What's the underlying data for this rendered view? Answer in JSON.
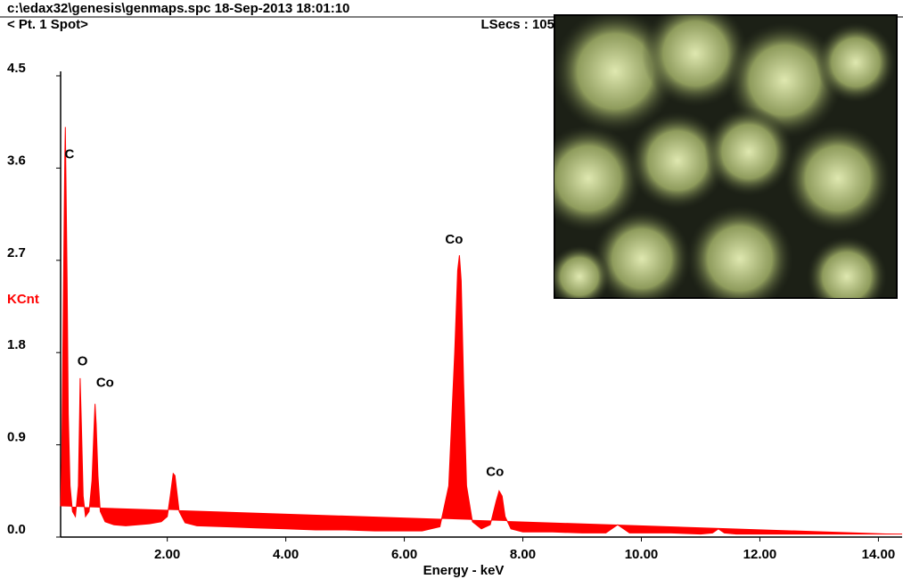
{
  "chart_data": {
    "type": "area",
    "header": "c:\\edax32\\genesis\\genmaps.spc  18-Sep-2013 18:01:10",
    "subheader": "< Pt.  1 Spot>",
    "live_time": "LSecs : 105",
    "ylabel": "KCnt",
    "xlabel": "Energy - keV",
    "color": "#ff0000",
    "xlim": [
      0.2,
      14.4
    ],
    "ylim": [
      0,
      4.5
    ],
    "xticks": [
      {
        "value": 2,
        "label": "2.00"
      },
      {
        "value": 4,
        "label": "4.00"
      },
      {
        "value": 6,
        "label": "6.00"
      },
      {
        "value": 8,
        "label": "8.00"
      },
      {
        "value": 10,
        "label": "10.00"
      },
      {
        "value": 12,
        "label": "12.00"
      },
      {
        "value": 14,
        "label": "14.00"
      }
    ],
    "yticks": [
      {
        "value": 0,
        "label": "0.0"
      },
      0.9,
      1.8,
      2.7,
      3.6,
      4.5
    ],
    "x": [
      0.2,
      0.22,
      0.25,
      0.27,
      0.28,
      0.29,
      0.31,
      0.33,
      0.36,
      0.4,
      0.45,
      0.5,
      0.52,
      0.53,
      0.55,
      0.58,
      0.62,
      0.68,
      0.73,
      0.76,
      0.78,
      0.8,
      0.83,
      0.87,
      0.95,
      1.1,
      1.3,
      1.5,
      1.7,
      1.9,
      2.0,
      2.05,
      2.1,
      2.13,
      2.16,
      2.2,
      2.3,
      2.5,
      3.0,
      3.5,
      4.0,
      4.5,
      5.0,
      5.5,
      6.0,
      6.3,
      6.6,
      6.75,
      6.85,
      6.9,
      6.93,
      6.96,
      7.0,
      7.05,
      7.15,
      7.3,
      7.45,
      7.55,
      7.6,
      7.65,
      7.7,
      7.8,
      8.0,
      8.5,
      9.0,
      9.4,
      9.55,
      9.6,
      9.65,
      9.8,
      10.5,
      11.0,
      11.2,
      11.3,
      11.4,
      11.6,
      12.5,
      13.5,
      14.4
    ],
    "values": [
      0.3,
      0.8,
      2.5,
      3.7,
      4.0,
      3.5,
      2.5,
      1.2,
      0.5,
      0.25,
      0.2,
      0.5,
      1.2,
      1.55,
      1.1,
      0.4,
      0.2,
      0.25,
      0.55,
      1.0,
      1.3,
      1.1,
      0.6,
      0.25,
      0.15,
      0.12,
      0.11,
      0.12,
      0.13,
      0.15,
      0.2,
      0.4,
      0.62,
      0.6,
      0.45,
      0.25,
      0.14,
      0.11,
      0.1,
      0.09,
      0.08,
      0.07,
      0.07,
      0.06,
      0.06,
      0.06,
      0.1,
      0.5,
      1.8,
      2.6,
      2.75,
      2.5,
      1.5,
      0.5,
      0.15,
      0.08,
      0.12,
      0.35,
      0.45,
      0.4,
      0.2,
      0.08,
      0.05,
      0.05,
      0.04,
      0.04,
      0.1,
      0.12,
      0.1,
      0.04,
      0.04,
      0.03,
      0.04,
      0.08,
      0.04,
      0.03,
      0.03,
      0.03,
      0.03
    ],
    "annotations": [
      {
        "text": "C",
        "x": 0.35,
        "y": 3.73
      },
      {
        "text": "O",
        "x": 0.57,
        "y": 1.71
      },
      {
        "text": "Co",
        "x": 0.95,
        "y": 1.5
      },
      {
        "text": "Co",
        "x": 6.84,
        "y": 2.9
      },
      {
        "text": "Co",
        "x": 7.53,
        "y": 0.63
      }
    ]
  }
}
